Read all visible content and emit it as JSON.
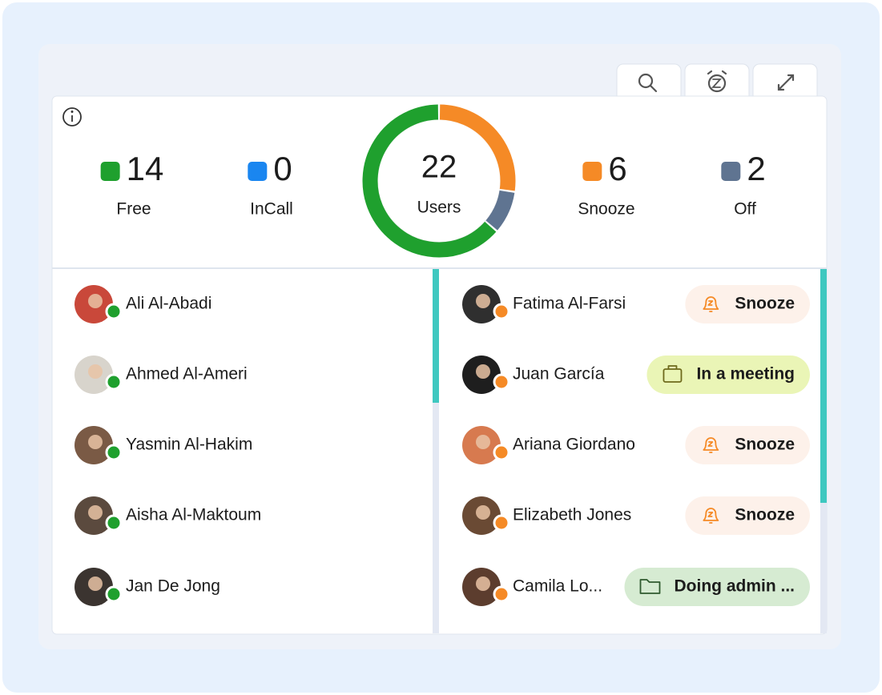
{
  "summary": {
    "total": 22,
    "total_label": "Users",
    "stats": [
      {
        "label": "Free",
        "value": 14,
        "color": "#1fa02e"
      },
      {
        "label": "InCall",
        "value": 0,
        "color": "#1a86f0"
      },
      {
        "label": "Snooze",
        "value": 6,
        "color": "#f58a26"
      },
      {
        "label": "Off",
        "value": 2,
        "color": "#5f7491"
      }
    ]
  },
  "users_left": [
    {
      "name": "Ali Al-Abadi"
    },
    {
      "name": "Ahmed Al-Ameri"
    },
    {
      "name": "Yasmin Al-Hakim"
    },
    {
      "name": "Aisha Al-Maktoum"
    },
    {
      "name": "Jan De Jong"
    }
  ],
  "users_right": [
    {
      "name": "Fatima Al-Farsi",
      "status": "Snooze",
      "badge_color": "#fdf1ea",
      "text_color": "#222222"
    },
    {
      "name": "Juan García",
      "status": "In a meeting",
      "badge_color": "#eaf5b6",
      "text_color": "#6e6a1c"
    },
    {
      "name": "Ariana Giordano",
      "status": "Snooze",
      "badge_color": "#fdf1ea",
      "text_color": "#222222"
    },
    {
      "name": "Elizabeth Jones",
      "status": "Snooze",
      "badge_color": "#fdf1ea",
      "text_color": "#222222"
    },
    {
      "name": "Camila Lo...",
      "status": "Doing admin ...",
      "badge_color": "#d6ebd2",
      "text_color": "#2f5a2f"
    }
  ]
}
